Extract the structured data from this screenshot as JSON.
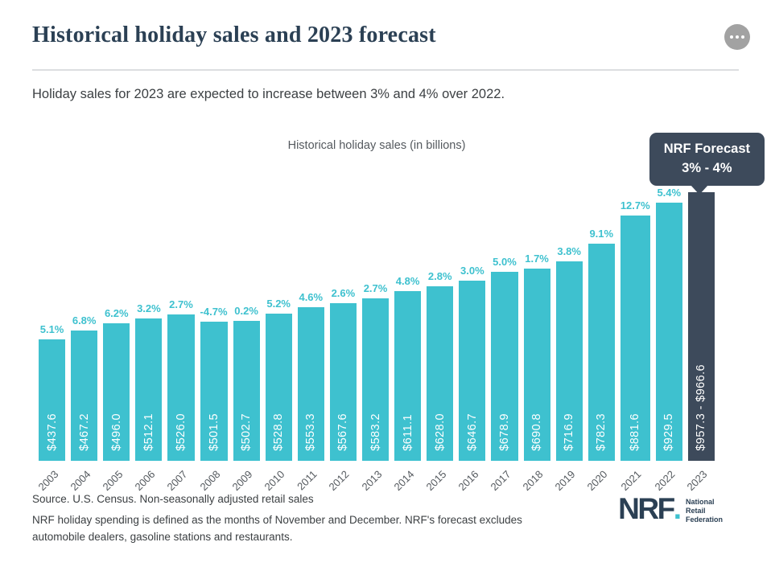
{
  "decor": {
    "quote_glyph": "”"
  },
  "header": {
    "title": "Historical holiday sales and 2023 forecast"
  },
  "intro": "Holiday sales for 2023 are expected to increase between 3% and 4% over 2022.",
  "chart_data": {
    "type": "bar",
    "title": "Historical holiday sales (in billions)",
    "xlabel": "",
    "ylabel": "",
    "ylim": [
      0,
      1000
    ],
    "grid": false,
    "legend": false,
    "categories": [
      "2003",
      "2004",
      "2005",
      "2006",
      "2007",
      "2008",
      "2009",
      "2010",
      "2011",
      "2012",
      "2013",
      "2014",
      "2015",
      "2016",
      "2017",
      "2018",
      "2019",
      "2020",
      "2021",
      "2022",
      "2023"
    ],
    "values": [
      437.6,
      467.2,
      496.0,
      512.1,
      526.0,
      501.5,
      502.7,
      528.8,
      553.3,
      567.6,
      583.2,
      611.1,
      628.0,
      646.7,
      678.9,
      690.8,
      716.9,
      782.3,
      881.6,
      929.5,
      966.6
    ],
    "value_labels": [
      "$437.6",
      "$467.2",
      "$496.0",
      "$512.1",
      "$526.0",
      "$501.5",
      "$502.7",
      "$528.8",
      "$553.3",
      "$567.6",
      "$583.2",
      "$611.1",
      "$628.0",
      "$646.7",
      "$678.9",
      "$690.8",
      "$716.9",
      "$782.3",
      "$881.6",
      "$929.5",
      "$957.3 - $966.6"
    ],
    "growth_labels": [
      "5.1%",
      "6.8%",
      "6.2%",
      "3.2%",
      "2.7%",
      "-4.7%",
      "0.2%",
      "5.2%",
      "4.6%",
      "2.6%",
      "2.7%",
      "4.8%",
      "2.8%",
      "3.0%",
      "5.0%",
      "1.7%",
      "3.8%",
      "9.1%",
      "12.7%",
      "5.4%",
      ""
    ],
    "forecast": {
      "index": 20,
      "range_low": 957.3,
      "range_high": 966.6,
      "callout_line1": "NRF Forecast",
      "callout_line2": "3% - 4%"
    },
    "colors": {
      "bar": "#3EC1CF",
      "forecast_bar": "#3D4A5B",
      "growth_label": "#3EC1CF",
      "value_label": "#FFFFFF"
    }
  },
  "footer": {
    "source_line1": "Source. U.S. Census. Non-seasonally adjusted retail sales",
    "source_line2": "NRF holiday spending is defined as the months of November and December. NRF's forecast excludes automobile dealers, gasoline stations and restaurants.",
    "logo": {
      "acronym": "NRF",
      "dot": ".",
      "tagline_lines": [
        "National",
        "Retail",
        "Federation"
      ]
    }
  }
}
